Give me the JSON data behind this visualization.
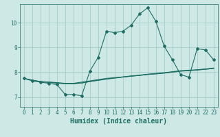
{
  "xlabel": "Humidex (Indice chaleur)",
  "bg_color": "#cde8e5",
  "grid_color": "#9dc8c4",
  "line_color": "#1e6e64",
  "xlim": [
    -0.5,
    23.5
  ],
  "ylim": [
    6.6,
    10.75
  ],
  "xticks": [
    0,
    1,
    2,
    3,
    4,
    5,
    6,
    7,
    8,
    9,
    10,
    11,
    12,
    13,
    14,
    15,
    16,
    17,
    18,
    19,
    20,
    21,
    22,
    23
  ],
  "yticks": [
    7,
    8,
    9,
    10
  ],
  "series": [
    [
      7.75,
      7.65,
      7.6,
      7.55,
      7.5,
      7.1,
      7.1,
      7.05,
      8.05,
      8.6,
      9.65,
      9.6,
      9.65,
      9.9,
      10.35,
      10.6,
      10.05,
      9.05,
      8.5,
      7.9,
      7.8,
      8.95,
      8.9,
      8.5
    ],
    [
      7.75,
      7.68,
      7.62,
      7.6,
      7.58,
      7.55,
      7.55,
      7.6,
      7.65,
      7.7,
      7.75,
      7.78,
      7.81,
      7.84,
      7.87,
      7.91,
      7.93,
      7.96,
      8.0,
      8.04,
      8.06,
      8.09,
      8.12,
      8.15
    ],
    [
      7.75,
      7.68,
      7.62,
      7.6,
      7.57,
      7.54,
      7.54,
      7.57,
      7.63,
      7.68,
      7.73,
      7.77,
      7.81,
      7.85,
      7.88,
      7.92,
      7.95,
      7.98,
      8.02,
      8.06,
      8.08,
      8.1,
      8.13,
      8.17
    ],
    [
      7.75,
      7.67,
      7.61,
      7.59,
      7.56,
      7.53,
      7.53,
      7.56,
      7.62,
      7.67,
      7.72,
      7.76,
      7.8,
      7.84,
      7.87,
      7.91,
      7.94,
      7.97,
      8.01,
      8.05,
      8.07,
      8.09,
      8.12,
      8.16
    ]
  ],
  "tick_fontsize": 5.5,
  "label_fontsize": 7,
  "font_color": "#1e6e64"
}
